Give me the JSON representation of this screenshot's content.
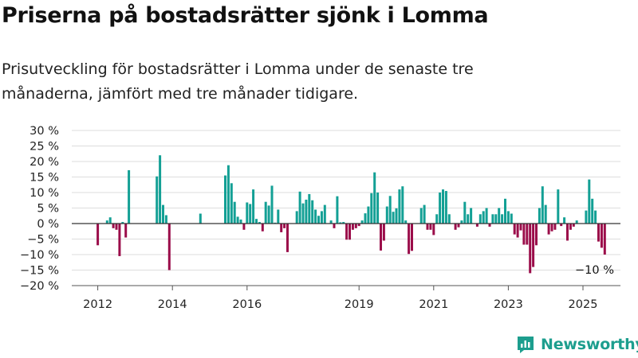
{
  "header": {
    "title": "Priserna på bostadsrätter sjönk i Lomma",
    "subtitle": "Prisutveckling för bostadsrätter i Lomma under de senaste tre månaderna, jämfört med tre månader tidigare."
  },
  "brand": {
    "name": "Newsworthy"
  },
  "colors": {
    "positive": "#13a095",
    "negative": "#9b0d4a",
    "grid": "#dddddd",
    "brand": "#1d9e8e"
  },
  "chart_data": {
    "type": "bar",
    "title": "Priserna på bostadsrätter sjönk i Lomma",
    "subtitle": "Prisutveckling för bostadsrätter i Lomma under de senaste tre månaderna, jämfört med tre månader tidigare.",
    "xlabel": "",
    "ylabel": "",
    "x_tick_labels": [
      "2012",
      "2014",
      "2016",
      "2019",
      "2021",
      "2023",
      "2025"
    ],
    "y_tick_labels": [
      "30 %",
      "25 %",
      "20 %",
      "15 %",
      "10 %",
      "5 %",
      "0 %",
      "−5 %",
      "−10 %",
      "−15 %",
      "−20 %"
    ],
    "ylim": [
      -20,
      30
    ],
    "grid": true,
    "start": "2012-01",
    "frequency": "monthly",
    "annotation": "−10 %",
    "values": [
      -7,
      null,
      null,
      1,
      2,
      -1.5,
      -2,
      -10.5,
      0.5,
      -4.5,
      17.2,
      null,
      null,
      null,
      null,
      null,
      null,
      null,
      null,
      15.2,
      22,
      6,
      2.7,
      -15,
      null,
      null,
      null,
      null,
      null,
      null,
      null,
      null,
      null,
      3.2,
      null,
      null,
      null,
      null,
      null,
      null,
      null,
      15.5,
      18.8,
      13,
      7,
      2.2,
      1.3,
      -2,
      6.8,
      6.3,
      11,
      1.5,
      0.5,
      -2.5,
      7,
      5.8,
      12.2,
      0.3,
      4.5,
      -2.8,
      -1.5,
      -9.2,
      null,
      null,
      4,
      10.3,
      6.5,
      7.7,
      9.5,
      7.5,
      4.5,
      2.5,
      4,
      6,
      null,
      1,
      -1.5,
      8.8,
      0.4,
      0.5,
      -5.2,
      -5.2,
      -2,
      -1.5,
      -0.8,
      1,
      3.3,
      5.5,
      9.8,
      16.5,
      10,
      -8.7,
      -5.5,
      5.5,
      8.9,
      3.8,
      4.9,
      11,
      12,
      1,
      -9.8,
      -8.8,
      null,
      null,
      5,
      6,
      -2,
      -2,
      -3.7,
      3,
      10,
      11,
      10.5,
      3,
      null,
      -2,
      -1.2,
      1,
      7,
      3,
      5,
      null,
      -1,
      3,
      4,
      5,
      -1,
      3,
      3,
      5,
      3,
      8,
      4,
      3.2,
      -3.5,
      -4.5,
      -2.2,
      -6.8,
      -6.8,
      -16,
      -14,
      -7,
      5,
      12,
      6,
      -3.5,
      -2.5,
      -2,
      11,
      -0.8,
      2,
      -5.5,
      -2,
      -1,
      1,
      null,
      null,
      4.2,
      14.2,
      8,
      4.2,
      -5.8,
      -7.8,
      -10
    ]
  }
}
